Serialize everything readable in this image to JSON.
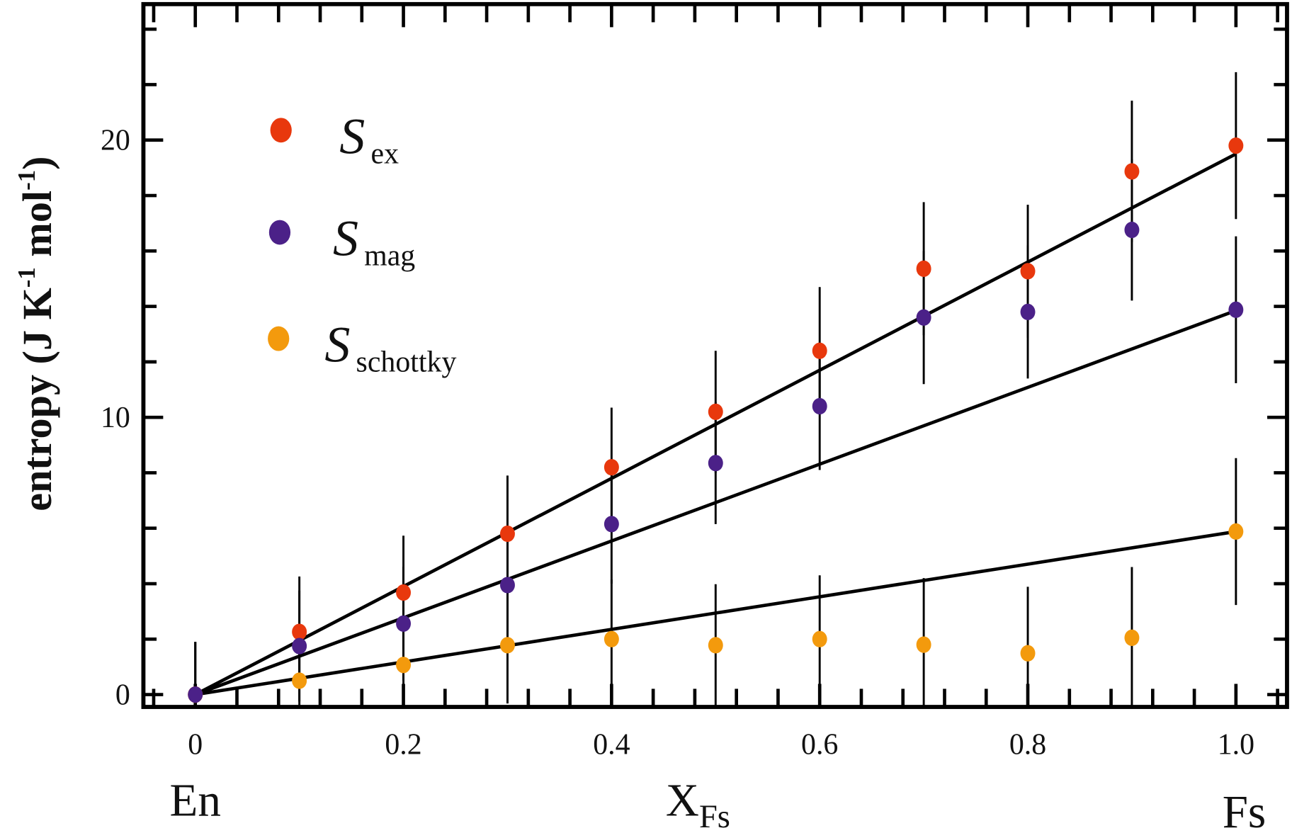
{
  "chart_data": {
    "type": "scatter",
    "xlabel": "X",
    "xlabel_sub": "Fs",
    "ylabel": "entropy (J K",
    "ylabel_sup1": "-1",
    "ylabel_mid": " mol",
    "ylabel_sup2": "-1",
    "ylabel_end": ")",
    "end_labels": {
      "left": "En",
      "right": "Fs"
    },
    "xlim": [
      -0.05,
      1.05
    ],
    "ylim": [
      -0.3,
      25
    ],
    "x_ticks": [
      0,
      0.2,
      0.4,
      0.6,
      0.8,
      1.0
    ],
    "x_tick_labels": [
      "0",
      "0.2",
      "0.4",
      "0.6",
      "0.8",
      "1.0"
    ],
    "y_ticks": [
      0,
      10,
      20
    ],
    "y_tick_labels": [
      "0",
      "10",
      "20"
    ],
    "grid": false,
    "legend_placement": "top-left",
    "x": [
      0,
      0.1,
      0.2,
      0.3,
      0.4,
      0.5,
      0.6,
      0.7,
      0.8,
      0.9,
      1.0
    ],
    "errors": [
      1.9,
      2.0,
      2.05,
      2.1,
      2.15,
      2.2,
      2.3,
      2.4,
      2.4,
      2.55,
      2.65
    ],
    "series": [
      {
        "name": "S",
        "sub": "ex",
        "color": "#e8380d",
        "values": [
          0,
          2.26,
          3.68,
          5.8,
          8.2,
          10.2,
          12.4,
          15.36,
          15.27,
          18.87,
          19.8
        ],
        "fit": [
          [
            0,
            0
          ],
          [
            1.0,
            19.5
          ]
        ]
      },
      {
        "name": "S",
        "sub": "mag",
        "color": "#4b2188",
        "values": [
          0,
          1.75,
          2.56,
          3.95,
          6.15,
          8.35,
          10.4,
          13.6,
          13.8,
          16.76,
          13.88
        ],
        "fit": [
          [
            0,
            0
          ],
          [
            1.0,
            13.85
          ]
        ]
      },
      {
        "name": "S",
        "sub": "schottky",
        "color": "#f39a0d",
        "values": [
          0,
          0.5,
          1.07,
          1.78,
          2.0,
          1.78,
          2.0,
          1.8,
          1.49,
          2.05,
          5.88
        ],
        "fit": [
          [
            0,
            0
          ],
          [
            1.0,
            5.88
          ]
        ]
      }
    ]
  }
}
